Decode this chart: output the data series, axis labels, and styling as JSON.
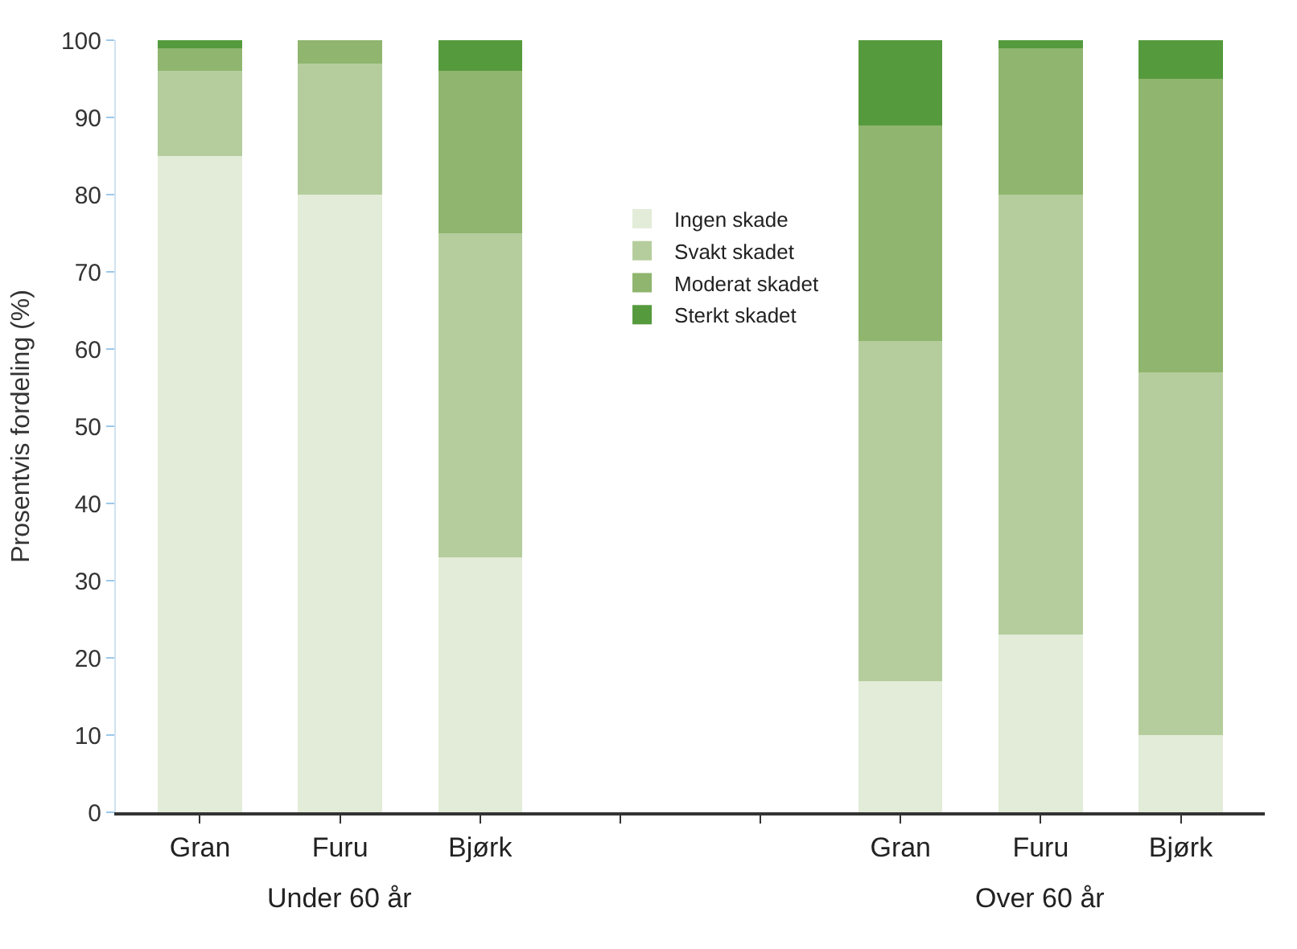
{
  "chart_data": {
    "type": "bar",
    "stacked": true,
    "ylabel": "Prosentvis fordeling (%)",
    "categories": [
      "Gran",
      "Furu",
      "Bjørk",
      null,
      null,
      "Gran",
      "Furu",
      "Bjørk"
    ],
    "series": [
      {
        "name": "Ingen skade",
        "color": "#e2ecd8",
        "values": [
          85,
          80,
          33,
          null,
          null,
          17,
          23,
          10
        ]
      },
      {
        "name": "Svakt skadet",
        "color": "#b5cd9c",
        "values": [
          11,
          17,
          42,
          null,
          null,
          44,
          57,
          47
        ]
      },
      {
        "name": "Moderat skadet",
        "color": "#8fb56e",
        "values": [
          3,
          3,
          21,
          null,
          null,
          28,
          19,
          38
        ]
      },
      {
        "name": "Sterkt skadet",
        "color": "#559a3d",
        "values": [
          1,
          0,
          4,
          null,
          null,
          11,
          1,
          5
        ]
      }
    ],
    "ylim": [
      0,
      100
    ],
    "yticks": [
      0,
      10,
      20,
      30,
      40,
      50,
      60,
      70,
      80,
      90,
      100
    ],
    "annotations": [
      "Under 60 år",
      "Over 60 år"
    ],
    "legend": "top"
  }
}
